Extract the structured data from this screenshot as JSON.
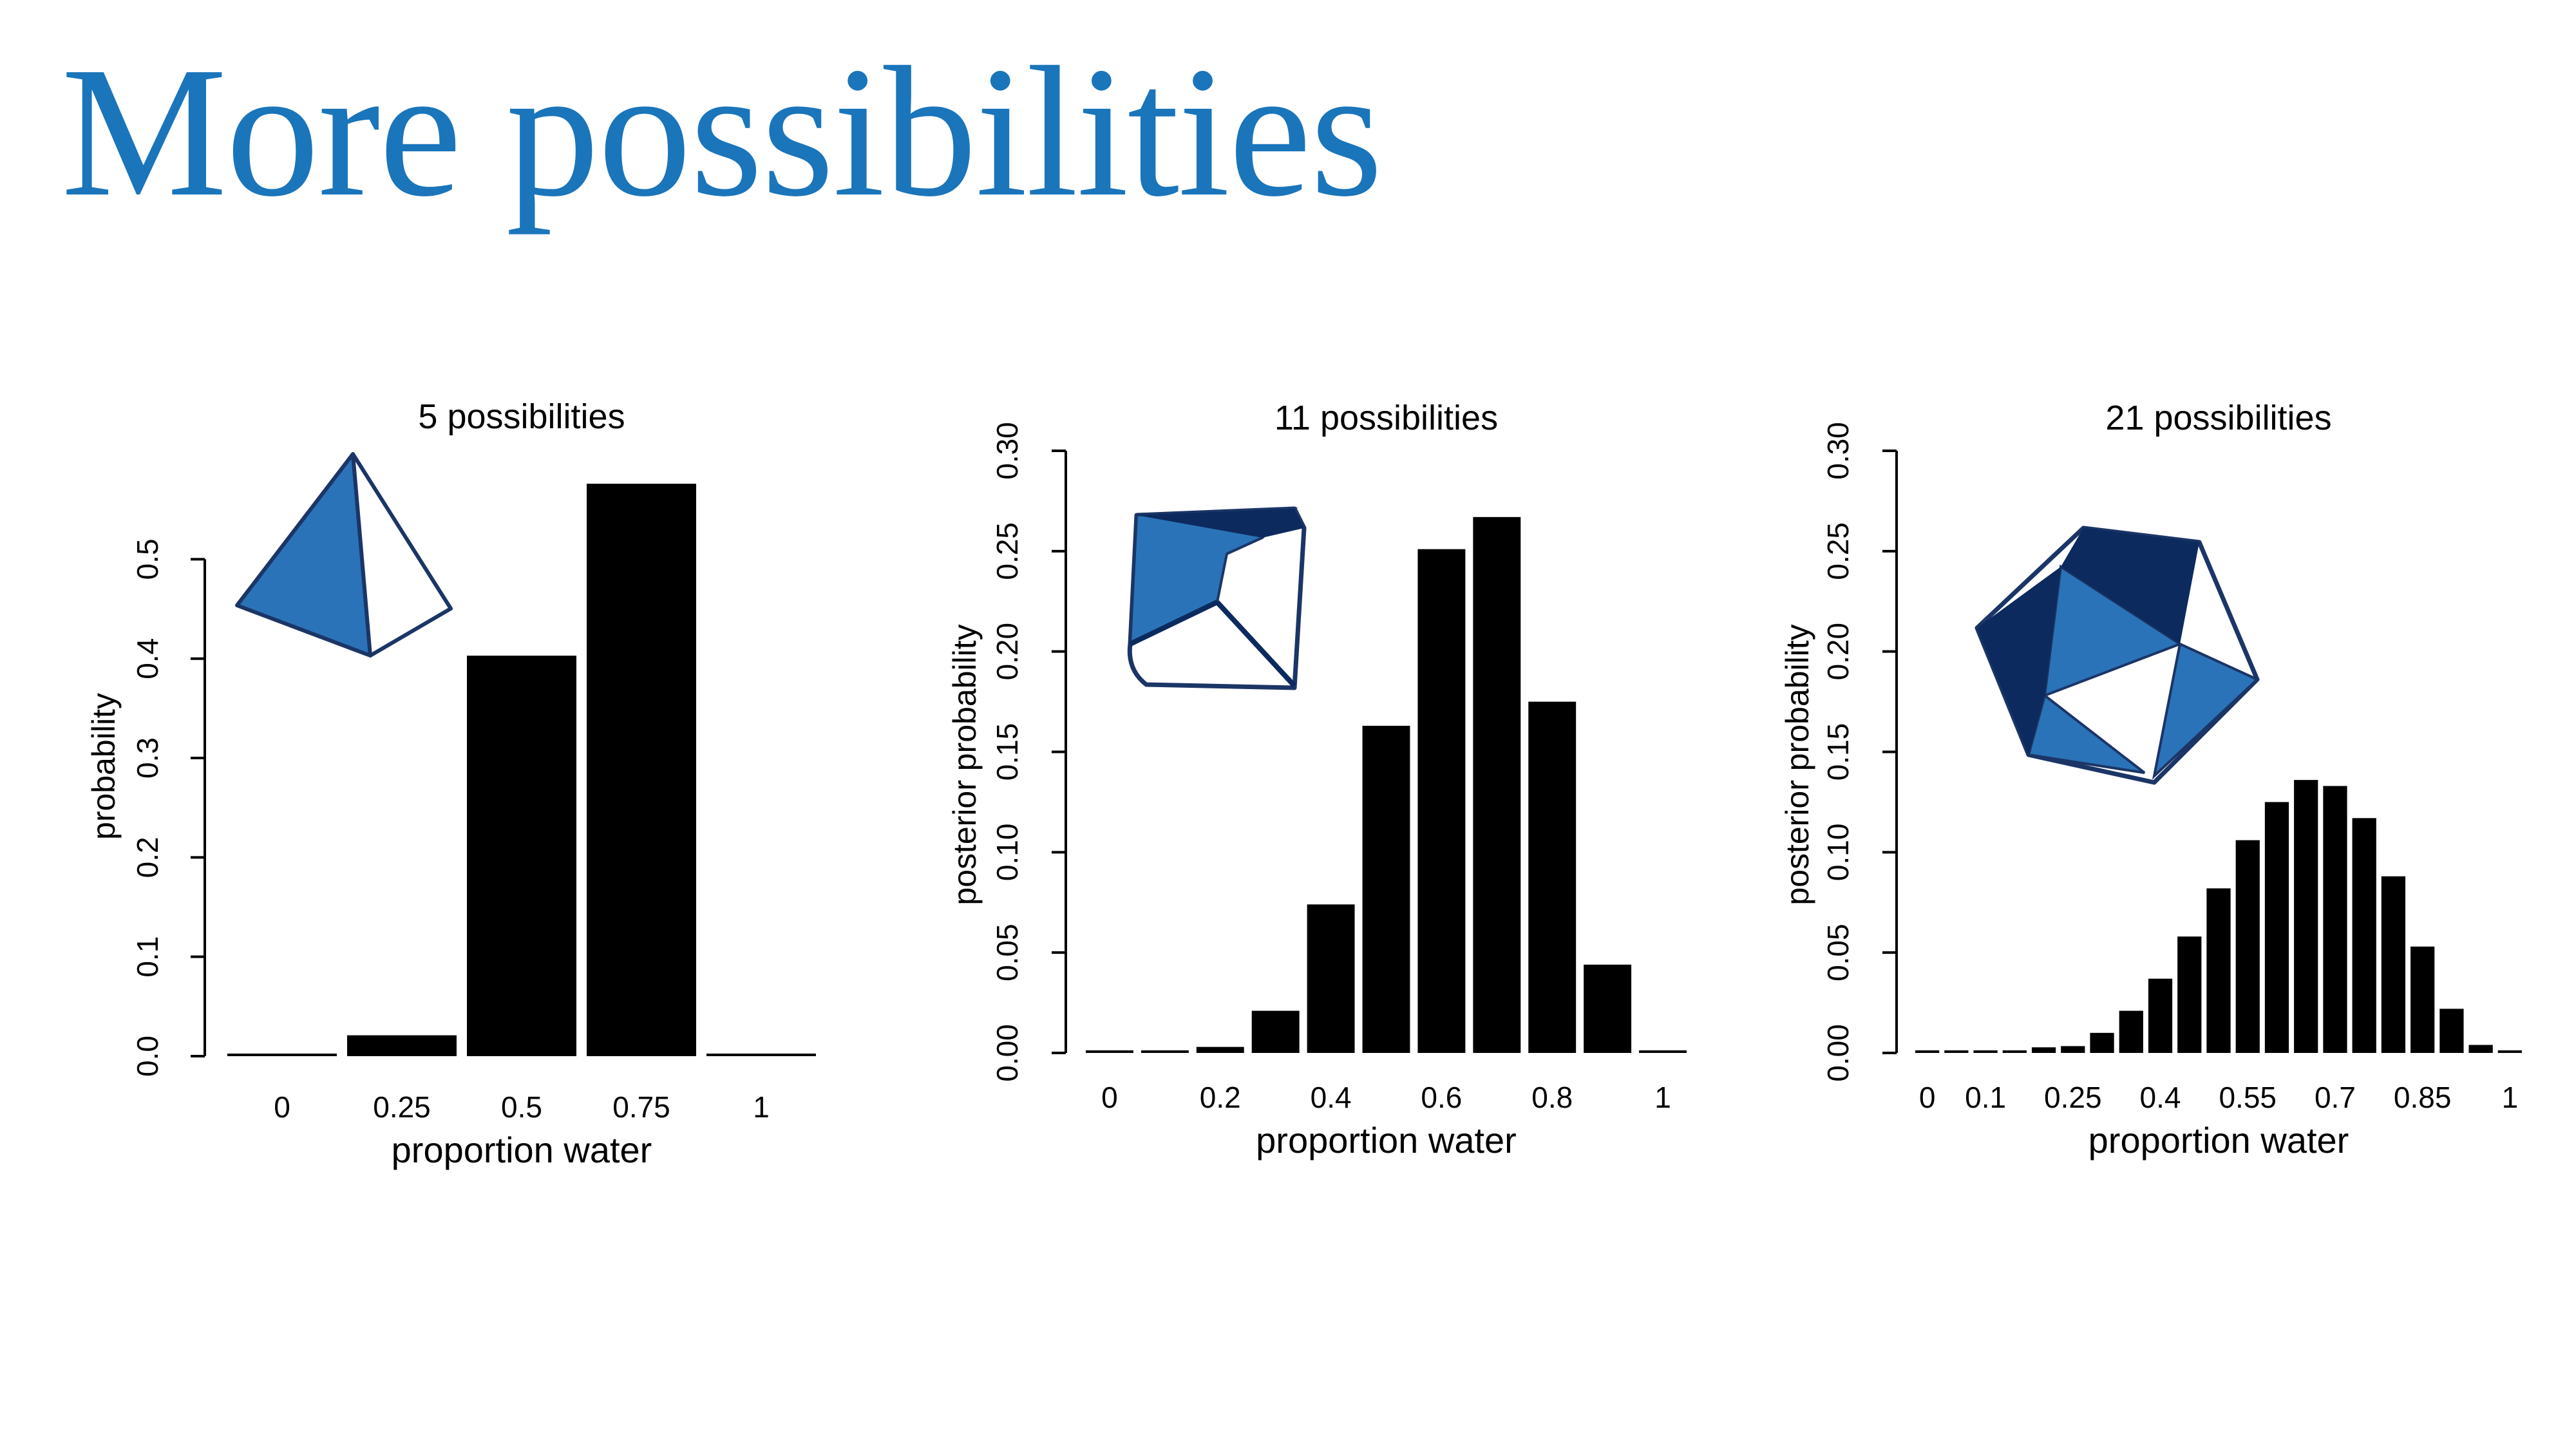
{
  "slide": {
    "title": "More possibilities",
    "title_color": "#1a75bb"
  },
  "colors": {
    "bar": "#000000",
    "die_light": "#2b73b8",
    "die_dark": "#0c2a5e",
    "die_outline": "#1b3566"
  },
  "chart_data": [
    {
      "type": "bar",
      "title": "5 possibilities",
      "xlabel": "proportion water",
      "ylabel": "probability",
      "categories": [
        "0",
        "0.25",
        "0.5",
        "0.75",
        "1"
      ],
      "values": [
        0.0,
        0.021,
        0.403,
        0.576,
        0.0
      ],
      "ylim": [
        0,
        0.6
      ],
      "yticks": [
        "0.0",
        "0.1",
        "0.2",
        "0.3",
        "0.4",
        "0.5"
      ],
      "xtick_labels": [
        "0",
        "0.25",
        "0.5",
        "0.75",
        "1"
      ],
      "grid": false,
      "icon": "tetrahedron-die-icon"
    },
    {
      "type": "bar",
      "title": "11 possibilities",
      "xlabel": "proportion water",
      "ylabel": "posterior probability",
      "categories": [
        "0",
        "0.1",
        "0.2",
        "0.3",
        "0.4",
        "0.5",
        "0.6",
        "0.7",
        "0.8",
        "0.9",
        "1"
      ],
      "values": [
        0.0,
        0.0,
        0.003,
        0.021,
        0.074,
        0.163,
        0.251,
        0.267,
        0.175,
        0.044,
        0.0
      ],
      "ylim": [
        0,
        0.3
      ],
      "yticks": [
        "0.00",
        "0.05",
        "0.10",
        "0.15",
        "0.20",
        "0.25",
        "0.30"
      ],
      "xtick_labels": [
        "0",
        "0.2",
        "0.4",
        "0.6",
        "0.8",
        "1"
      ],
      "grid": false,
      "icon": "cube-die-icon"
    },
    {
      "type": "bar",
      "title": "21 possibilities",
      "xlabel": "proportion water",
      "ylabel": "posterior probability",
      "categories": [
        "0",
        "0.05",
        "0.1",
        "0.15",
        "0.2",
        "0.25",
        "0.3",
        "0.35",
        "0.4",
        "0.45",
        "0.5",
        "0.55",
        "0.6",
        "0.65",
        "0.7",
        "0.75",
        "0.8",
        "0.85",
        "0.9",
        "0.95",
        "1"
      ],
      "values": [
        0.0,
        0.0,
        0.0,
        0.0007,
        0.0028,
        0.0034,
        0.01,
        0.021,
        0.037,
        0.058,
        0.082,
        0.106,
        0.125,
        0.136,
        0.133,
        0.117,
        0.088,
        0.053,
        0.022,
        0.004,
        0.0
      ],
      "ylim": [
        0,
        0.3
      ],
      "yticks": [
        "0.00",
        "0.05",
        "0.10",
        "0.15",
        "0.20",
        "0.25",
        "0.30"
      ],
      "xtick_labels": [
        "0",
        "0.1",
        "0.25",
        "0.4",
        "0.55",
        "0.7",
        "0.85",
        "1"
      ],
      "grid": false,
      "icon": "icosahedron-die-icon"
    }
  ]
}
